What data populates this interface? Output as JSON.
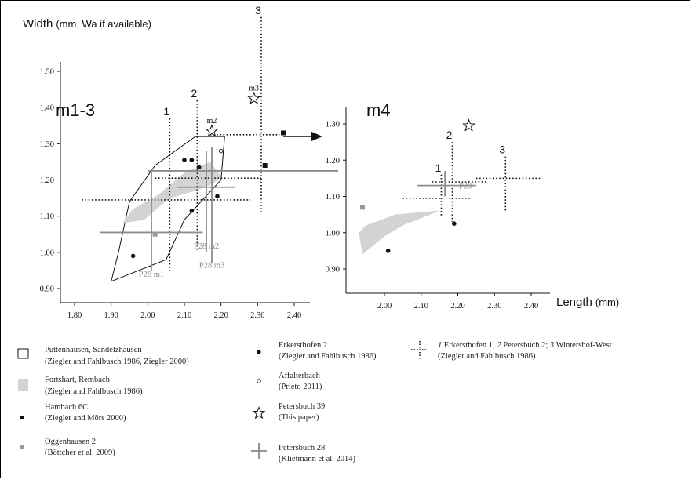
{
  "colors": {
    "black": "#111111",
    "grey": "#8c8c8c",
    "shade": "#d3d3d3"
  },
  "chart_data": [
    {
      "type": "scatter",
      "panel_label": "m1-3",
      "ylabel_main": "Width",
      "ylabel_unit": "(mm, Wa if available)",
      "x_ticks": [
        "1.80",
        "1.90",
        "2.00",
        "2.10",
        "2.20",
        "2.30",
        "2.40"
      ],
      "y_ticks": [
        "0.90",
        "1.00",
        "1.10",
        "1.20",
        "1.30",
        "1.40",
        "1.50"
      ],
      "xlim": [
        1.77,
        2.45
      ],
      "ylim": [
        0.86,
        1.6
      ],
      "grid": false,
      "series": [
        {
          "name": "Erkersthofen 2",
          "marker": "filled-circle",
          "x": [
            1.96,
            2.1,
            2.12,
            2.14,
            2.12,
            2.19
          ],
          "y": [
            0.99,
            1.255,
            1.255,
            1.235,
            1.115,
            1.155
          ]
        },
        {
          "name": "Affalterbach",
          "marker": "open-circle",
          "x": [
            2.2
          ],
          "y": [
            1.28
          ]
        },
        {
          "name": "Hambach 6C",
          "marker": "filled-square",
          "x": [
            2.37,
            2.32
          ],
          "y": [
            1.33,
            1.24
          ]
        },
        {
          "name": "Oggenhausen 2",
          "marker": "grey-square",
          "x": [
            2.02
          ],
          "y": [
            1.05
          ]
        },
        {
          "name": "Petersbuch 39",
          "marker": "star",
          "labels": [
            "m2",
            "m3"
          ],
          "x": [
            2.175,
            2.29
          ],
          "y": [
            1.335,
            1.425
          ]
        }
      ],
      "ranges": [
        {
          "label": "1",
          "kind": "dotted",
          "x": 2.06,
          "x_min": 1.82,
          "x_max": 2.28,
          "y": 1.145,
          "y_min": 0.95,
          "y_max": 1.37
        },
        {
          "label": "2",
          "kind": "dotted",
          "x": 2.135,
          "x_min": 2.02,
          "x_max": 2.31,
          "y": 1.205,
          "y_min": 1.0,
          "y_max": 1.42
        },
        {
          "label": "3",
          "kind": "dotted",
          "x": 2.31,
          "x_min": 2.17,
          "x_max": 2.36,
          "y": 1.325,
          "y_min": 1.11,
          "y_max": 1.65
        },
        {
          "label": "P28 m1",
          "kind": "grey",
          "x": 2.01,
          "x_min": 1.87,
          "x_max": 2.15,
          "y": 1.055,
          "y_min": 0.95,
          "y_max": 1.23
        },
        {
          "label": "P28 m2",
          "kind": "grey",
          "x": 2.16,
          "x_min": 2.08,
          "x_max": 2.24,
          "y": 1.18,
          "y_min": 1.0,
          "y_max": 1.28
        },
        {
          "label": "P28 m3",
          "kind": "grey",
          "x": 2.175,
          "x_min": 2.0,
          "x_max": 2.52,
          "y": 1.225,
          "y_min": 0.97,
          "y_max": 1.29
        }
      ],
      "polygons": [
        {
          "name": "Puttenhausen, Sandelzhausen",
          "style": "outline",
          "points": [
            [
              1.9,
              0.92
            ],
            [
              2.05,
              0.98
            ],
            [
              2.1,
              1.09
            ],
            [
              2.2,
              1.2
            ],
            [
              2.21,
              1.32
            ],
            [
              2.13,
              1.32
            ],
            [
              2.02,
              1.24
            ],
            [
              1.95,
              1.14
            ],
            [
              1.92,
              1.0
            ]
          ]
        },
        {
          "name": "Fortshart, Rembach",
          "style": "filled",
          "points": [
            [
              1.93,
              1.08
            ],
            [
              1.99,
              1.09
            ],
            [
              2.06,
              1.15
            ],
            [
              2.13,
              1.17
            ],
            [
              2.18,
              1.19
            ],
            [
              2.2,
              1.21
            ],
            [
              2.17,
              1.25
            ],
            [
              2.1,
              1.22
            ],
            [
              2.03,
              1.16
            ],
            [
              1.96,
              1.12
            ]
          ]
        }
      ]
    },
    {
      "type": "scatter",
      "panel_label": "m4",
      "xlabel_main": "Length",
      "xlabel_unit": "(mm)",
      "x_ticks": [
        "2.00",
        "2.10",
        "2.20",
        "2.30",
        "2.40"
      ],
      "y_ticks": [
        "0.90",
        "1.00",
        "1.10",
        "1.20",
        "1.30"
      ],
      "xlim": [
        1.92,
        2.45
      ],
      "ylim": [
        0.86,
        1.38
      ],
      "grid": false,
      "series": [
        {
          "name": "Erkersthofen 2",
          "marker": "filled-circle",
          "x": [
            2.01,
            2.19
          ],
          "y": [
            0.95,
            1.025
          ]
        },
        {
          "name": "Oggenhausen 2",
          "marker": "grey-square",
          "x": [
            1.94
          ],
          "y": [
            1.07
          ]
        },
        {
          "name": "Petersbuch 39",
          "marker": "star",
          "x": [
            2.23
          ],
          "y": [
            1.295
          ]
        }
      ],
      "ranges": [
        {
          "label": "1",
          "kind": "dotted",
          "x": 2.155,
          "x_min": 2.05,
          "x_max": 2.24,
          "y": 1.095,
          "y_min": 1.045,
          "y_max": 1.16
        },
        {
          "label": "2",
          "kind": "dotted",
          "x": 2.185,
          "x_min": 2.13,
          "x_max": 2.28,
          "y": 1.14,
          "y_min": 1.03,
          "y_max": 1.25
        },
        {
          "label": "3",
          "kind": "dotted",
          "x": 2.33,
          "x_min": 2.25,
          "x_max": 2.43,
          "y": 1.15,
          "y_min": 1.06,
          "y_max": 1.21
        },
        {
          "label": "P28",
          "kind": "grey",
          "x": 2.165,
          "x_min": 2.09,
          "x_max": 2.25,
          "y": 1.13,
          "y_min": 1.1,
          "y_max": 1.17
        }
      ],
      "polygons": [
        {
          "name": "Fortshart, Rembach",
          "style": "filled",
          "points": [
            [
              1.94,
              0.94
            ],
            [
              2.0,
              0.99
            ],
            [
              2.05,
              1.02
            ],
            [
              2.15,
              1.06
            ],
            [
              2.14,
              1.06
            ],
            [
              2.03,
              1.05
            ],
            [
              1.95,
              1.02
            ],
            [
              1.93,
              1.0
            ]
          ]
        }
      ]
    }
  ],
  "legend": [
    {
      "marker": "open-rect",
      "line1": "Puttenhausen, Sandelzhausen",
      "line2": "(Ziegler and Fahlbusch 1986, Ziegler 2000)"
    },
    {
      "marker": "grey-rect",
      "line1": "Fortshart, Rembach",
      "line2": "(Ziegler and Fahlbusch 1986)"
    },
    {
      "marker": "filled-square",
      "line1": "Hambach 6C",
      "line2": "(Ziegler and Mörs 2000)"
    },
    {
      "marker": "grey-square",
      "line1": "Oggenhausen 2",
      "line2": "(Böttcher et al. 2009)"
    },
    {
      "marker": "filled-circle",
      "line1": "Erkersthofen 2",
      "line2": "(Ziegler and Fahlbusch 1986)"
    },
    {
      "marker": "open-circle",
      "line1": "Affalterbach",
      "line2": "(Prieto 2011)"
    },
    {
      "marker": "star",
      "line1": "Petersbuch 39",
      "line2": "(This paper)"
    },
    {
      "marker": "grey-cross",
      "line1": "Petersbuch 28",
      "line2": "(Klietmann et al. 2014)"
    },
    {
      "marker": "dotted-cross",
      "line1_parts": [
        {
          "n": "1",
          "t": " Erkersthofen 1; "
        },
        {
          "n": "2",
          "t": " Petersbuch 2; "
        },
        {
          "n": "3",
          "t": " Wintershof-West"
        }
      ],
      "line2": "(Ziegler and Fahlbusch 1986)"
    }
  ]
}
